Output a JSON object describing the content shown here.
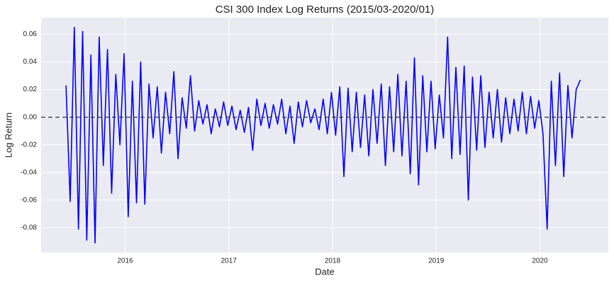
{
  "chart_data": {
    "type": "line",
    "title": "CSI 300 Index Log Returns (2015/03-2020/01)",
    "xlabel": "Date",
    "ylabel": "Log Return",
    "color": "#0000ff",
    "grid": true,
    "hline": 0,
    "xlim": [
      2015.19,
      2020.66
    ],
    "xticks": [
      2016,
      2017,
      2018,
      2019,
      2020
    ],
    "ylim": [
      -0.098,
      0.072
    ],
    "yticks": [
      -0.08,
      -0.06,
      -0.04,
      -0.02,
      {
        "value": 0,
        "label": "0.00"
      },
      0.02,
      0.04,
      0.06
    ],
    "x": [
      2015.43,
      2015.47,
      2015.51,
      2015.55,
      2015.59,
      2015.63,
      2015.67,
      2015.71,
      2015.75,
      2015.79,
      2015.83,
      2015.87,
      2015.91,
      2015.95,
      2015.99,
      2016.03,
      2016.07,
      2016.11,
      2016.15,
      2016.19,
      2016.23,
      2016.27,
      2016.31,
      2016.35,
      2016.39,
      2016.43,
      2016.47,
      2016.51,
      2016.55,
      2016.59,
      2016.63,
      2016.67,
      2016.71,
      2016.75,
      2016.79,
      2016.83,
      2016.87,
      2016.91,
      2016.95,
      2016.99,
      2017.03,
      2017.07,
      2017.11,
      2017.15,
      2017.19,
      2017.23,
      2017.27,
      2017.31,
      2017.35,
      2017.39,
      2017.43,
      2017.47,
      2017.51,
      2017.55,
      2017.59,
      2017.63,
      2017.67,
      2017.71,
      2017.75,
      2017.79,
      2017.83,
      2017.87,
      2017.91,
      2017.95,
      2017.99,
      2018.03,
      2018.07,
      2018.11,
      2018.15,
      2018.19,
      2018.23,
      2018.27,
      2018.31,
      2018.35,
      2018.39,
      2018.43,
      2018.47,
      2018.51,
      2018.55,
      2018.59,
      2018.63,
      2018.67,
      2018.71,
      2018.75,
      2018.79,
      2018.83,
      2018.87,
      2018.91,
      2018.95,
      2018.99,
      2019.03,
      2019.07,
      2019.11,
      2019.15,
      2019.19,
      2019.23,
      2019.27,
      2019.31,
      2019.35,
      2019.39,
      2019.43,
      2019.47,
      2019.51,
      2019.55,
      2019.59,
      2019.63,
      2019.67,
      2019.71,
      2019.75,
      2019.79,
      2019.83,
      2019.87,
      2019.91,
      2019.95,
      2019.99,
      2020.03,
      2020.07,
      2020.11,
      2020.15,
      2020.19,
      2020.23,
      2020.27,
      2020.31,
      2020.35,
      2020.39
    ],
    "values": [
      0.023,
      -0.061,
      0.065,
      -0.081,
      0.062,
      -0.089,
      0.045,
      -0.091,
      0.058,
      -0.035,
      0.049,
      -0.055,
      0.031,
      -0.02,
      0.046,
      -0.072,
      0.026,
      -0.062,
      0.04,
      -0.063,
      0.024,
      -0.015,
      0.022,
      -0.026,
      0.018,
      -0.012,
      0.033,
      -0.03,
      0.014,
      -0.008,
      0.03,
      -0.01,
      0.012,
      -0.005,
      0.009,
      -0.012,
      0.006,
      -0.007,
      0.011,
      -0.006,
      0.008,
      -0.009,
      0.005,
      -0.011,
      0.007,
      -0.024,
      0.013,
      -0.006,
      0.01,
      -0.008,
      0.009,
      -0.005,
      0.013,
      -0.012,
      0.008,
      -0.019,
      0.011,
      -0.007,
      0.012,
      -0.004,
      0.006,
      -0.009,
      0.013,
      -0.012,
      0.018,
      -0.013,
      0.022,
      -0.043,
      0.021,
      -0.025,
      0.018,
      -0.022,
      0.016,
      -0.028,
      0.02,
      -0.019,
      0.024,
      -0.035,
      0.022,
      -0.025,
      0.031,
      -0.028,
      0.026,
      -0.041,
      0.043,
      -0.049,
      0.03,
      -0.025,
      0.026,
      -0.023,
      0.016,
      -0.015,
      0.058,
      -0.03,
      0.036,
      -0.027,
      0.037,
      -0.06,
      0.029,
      -0.024,
      0.03,
      -0.022,
      0.018,
      -0.015,
      0.02,
      -0.018,
      0.014,
      -0.012,
      0.013,
      -0.01,
      0.018,
      -0.012,
      0.015,
      -0.008,
      0.012,
      -0.012,
      -0.081,
      0.026,
      -0.035,
      0.032,
      -0.043,
      0.023,
      -0.015,
      0.02,
      0.027
    ]
  }
}
